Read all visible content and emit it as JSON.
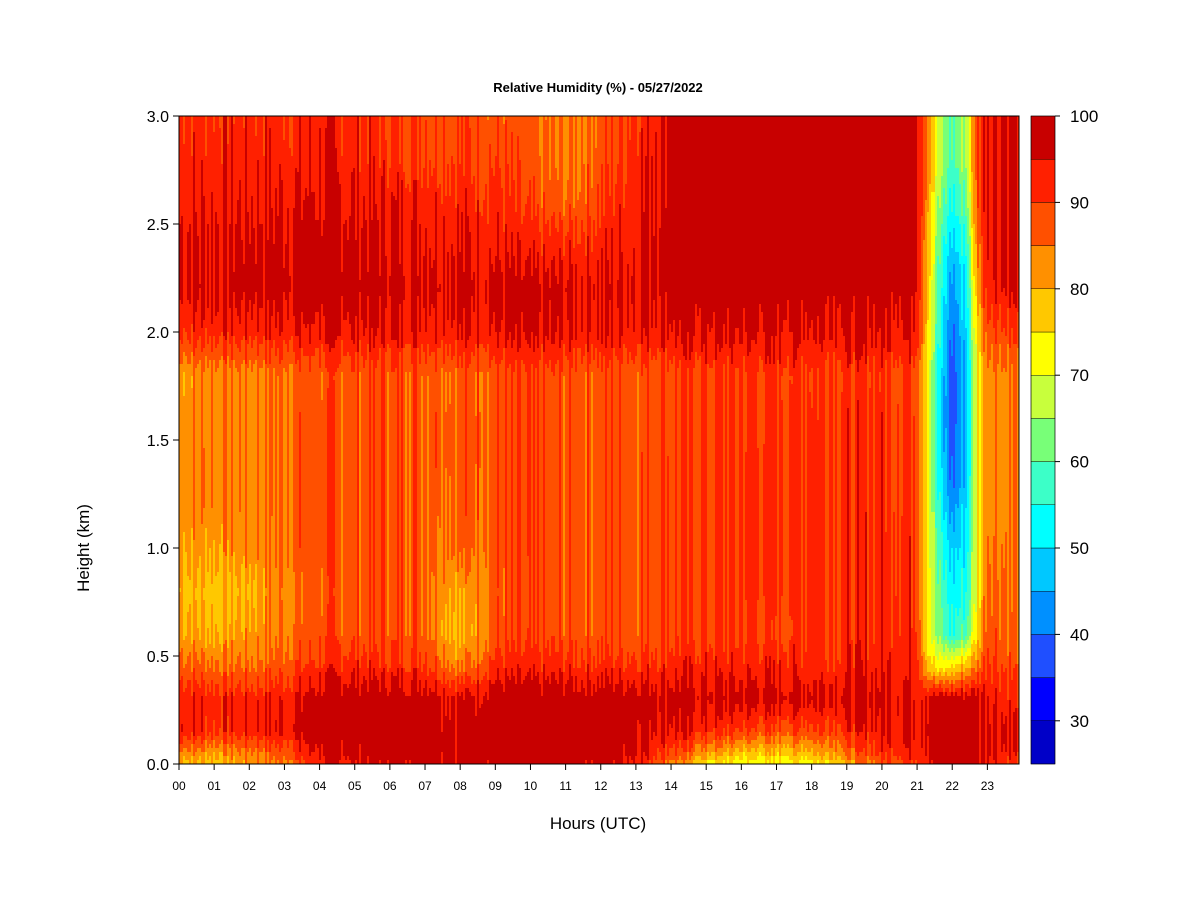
{
  "chart_data": {
    "type": "heatmap",
    "title": "Relative Humidity (%) - 05/27/2022",
    "xlabel": "Hours (UTC)",
    "ylabel": "Height (km)",
    "x_ticks": [
      "00",
      "01",
      "02",
      "03",
      "04",
      "05",
      "06",
      "07",
      "08",
      "09",
      "10",
      "11",
      "12",
      "13",
      "14",
      "15",
      "16",
      "17",
      "18",
      "19",
      "20",
      "21",
      "22",
      "23"
    ],
    "y_ticks": [
      "0.0",
      "0.5",
      "1.0",
      "1.5",
      "2.0",
      "2.5",
      "3.0"
    ],
    "xlim": [
      0,
      23.9
    ],
    "ylim": [
      0,
      3.0
    ],
    "colorbar": {
      "levels": [
        25,
        30,
        35,
        40,
        45,
        50,
        55,
        60,
        65,
        70,
        75,
        80,
        85,
        90,
        95,
        100
      ],
      "colors": [
        "#00007f",
        "#0000c8",
        "#0000ff",
        "#1f4fff",
        "#0090ff",
        "#00c8ff",
        "#00ffff",
        "#3cffc8",
        "#78ff78",
        "#c8ff3c",
        "#ffff00",
        "#ffc800",
        "#ff9000",
        "#ff5000",
        "#ff2000",
        "#c80000",
        "#800000"
      ],
      "tick_labels": [
        "30",
        "40",
        "50",
        "60",
        "70",
        "80",
        "90",
        "100"
      ],
      "tick_values": [
        30,
        40,
        50,
        60,
        70,
        80,
        90,
        100
      ]
    },
    "heights_km": [
      0.0,
      0.05,
      0.15,
      0.3,
      0.45,
      0.6,
      0.8,
      1.0,
      1.2,
      1.4,
      1.6,
      1.8,
      2.0,
      2.2,
      2.4,
      2.6,
      2.8,
      3.0
    ],
    "hours": [
      0,
      1,
      2,
      3,
      4,
      5,
      6,
      7,
      8,
      9,
      10,
      11,
      12,
      13,
      14,
      15,
      16,
      17,
      18,
      19,
      20,
      21,
      21.3,
      21.6,
      22,
      22.4,
      22.7,
      23,
      23.9
    ],
    "values": [
      [
        80,
        78,
        82,
        85,
        92,
        95,
        98,
        98,
        98,
        98,
        98,
        98,
        98,
        95,
        85,
        75,
        72,
        72,
        74,
        80,
        88,
        92,
        95,
        97,
        98,
        98,
        98,
        96,
        90
      ],
      [
        85,
        82,
        85,
        88,
        97,
        98,
        99,
        99,
        98,
        99,
        99,
        99,
        99,
        97,
        90,
        82,
        78,
        78,
        80,
        85,
        92,
        95,
        97,
        98,
        98,
        98,
        98,
        97,
        93
      ],
      [
        95,
        92,
        93,
        95,
        98,
        99,
        99,
        99,
        98,
        99,
        99,
        99,
        99,
        98,
        96,
        92,
        90,
        88,
        90,
        92,
        95,
        97,
        98,
        98,
        98,
        98,
        98,
        97,
        95
      ],
      [
        94,
        93,
        93,
        94,
        98,
        99,
        99,
        99,
        96,
        99,
        99,
        99,
        99,
        99,
        98,
        97,
        97,
        97,
        97,
        97,
        97,
        96,
        97,
        98,
        98,
        98,
        98,
        96,
        92
      ],
      [
        88,
        86,
        86,
        88,
        92,
        93,
        92,
        92,
        84,
        92,
        92,
        92,
        92,
        92,
        93,
        93,
        93,
        93,
        93,
        93,
        94,
        94,
        80,
        72,
        75,
        80,
        85,
        92,
        88
      ],
      [
        82,
        80,
        82,
        85,
        88,
        88,
        88,
        88,
        78,
        88,
        88,
        88,
        88,
        88,
        90,
        90,
        90,
        90,
        92,
        92,
        93,
        93,
        74,
        62,
        55,
        60,
        75,
        90,
        85
      ],
      [
        80,
        78,
        80,
        84,
        87,
        88,
        88,
        88,
        80,
        87,
        88,
        88,
        88,
        88,
        90,
        90,
        91,
        91,
        92,
        92,
        93,
        92,
        74,
        60,
        52,
        55,
        72,
        88,
        84
      ],
      [
        82,
        82,
        83,
        86,
        88,
        88,
        88,
        88,
        86,
        88,
        88,
        88,
        88,
        88,
        90,
        90,
        91,
        91,
        92,
        92,
        93,
        92,
        74,
        58,
        48,
        52,
        72,
        86,
        84
      ],
      [
        84,
        84,
        84,
        86,
        88,
        88,
        88,
        88,
        87,
        88,
        88,
        88,
        88,
        88,
        90,
        90,
        91,
        91,
        92,
        92,
        92,
        91,
        74,
        55,
        42,
        50,
        72,
        85,
        84
      ],
      [
        84,
        84,
        84,
        86,
        88,
        88,
        88,
        88,
        88,
        88,
        88,
        88,
        88,
        88,
        90,
        90,
        91,
        91,
        92,
        92,
        92,
        91,
        74,
        52,
        38,
        48,
        72,
        85,
        84
      ],
      [
        83,
        84,
        84,
        86,
        88,
        88,
        88,
        88,
        88,
        88,
        88,
        88,
        88,
        88,
        89,
        90,
        90,
        91,
        92,
        92,
        92,
        91,
        74,
        52,
        36,
        47,
        72,
        85,
        84
      ],
      [
        82,
        84,
        84,
        86,
        87,
        88,
        88,
        88,
        87,
        88,
        88,
        88,
        88,
        88,
        89,
        90,
        90,
        91,
        91,
        91,
        91,
        90,
        74,
        53,
        36,
        47,
        72,
        85,
        84
      ],
      [
        92,
        93,
        93,
        94,
        95,
        95,
        95,
        95,
        95,
        95,
        95,
        95,
        95,
        95,
        96,
        96,
        96,
        96,
        96,
        96,
        96,
        96,
        78,
        55,
        40,
        50,
        75,
        90,
        90
      ],
      [
        96,
        97,
        98,
        98,
        99,
        99,
        98,
        98,
        97,
        97,
        96,
        96,
        96,
        96,
        99,
        99,
        99,
        99,
        99,
        99,
        99,
        98,
        80,
        58,
        42,
        52,
        80,
        95,
        96
      ],
      [
        96,
        96,
        97,
        97,
        98,
        97,
        96,
        96,
        95,
        94,
        92,
        92,
        93,
        95,
        99,
        99,
        99,
        99,
        99,
        99,
        99,
        98,
        82,
        60,
        48,
        56,
        84,
        96,
        96
      ],
      [
        94,
        94,
        95,
        95,
        96,
        95,
        94,
        94,
        93,
        92,
        88,
        86,
        90,
        94,
        99,
        99,
        99,
        99,
        99,
        99,
        99,
        98,
        84,
        64,
        54,
        62,
        88,
        96,
        96
      ],
      [
        93,
        93,
        93,
        93,
        94,
        93,
        92,
        91,
        90,
        90,
        86,
        84,
        88,
        93,
        99,
        99,
        99,
        99,
        99,
        99,
        99,
        98,
        86,
        68,
        58,
        66,
        90,
        96,
        96
      ],
      [
        92,
        92,
        92,
        92,
        93,
        92,
        91,
        90,
        89,
        88,
        85,
        84,
        87,
        92,
        98,
        99,
        99,
        99,
        99,
        99,
        99,
        98,
        86,
        68,
        58,
        66,
        90,
        96,
        96
      ]
    ]
  }
}
